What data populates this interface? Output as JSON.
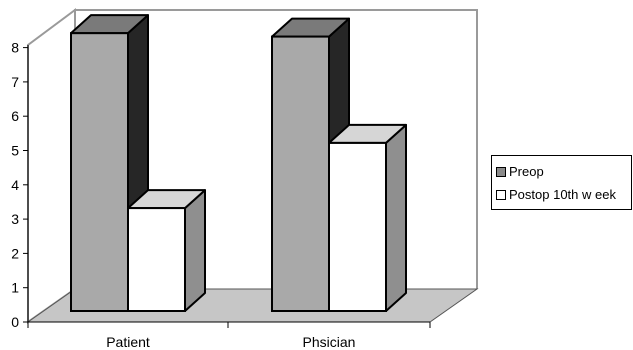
{
  "chart_data": {
    "type": "bar",
    "categories": [
      "Patient",
      "Phsician"
    ],
    "series": [
      {
        "name": "Preop",
        "values": [
          8.1,
          8.0
        ]
      },
      {
        "name": "Postop 10th w eek",
        "values": [
          3.0,
          4.9
        ]
      }
    ],
    "ylim": [
      0,
      8
    ],
    "yticks": [
      0,
      1,
      2,
      3,
      4,
      5,
      6,
      7,
      8
    ],
    "legend": "right",
    "grid": false,
    "three_d": true,
    "colors": {
      "preop_front": "#a9a9a9",
      "preop_side": "#262626",
      "preop_top": "#7a7a7a",
      "postop_front": "#ffffff",
      "postop_side": "#8f8f8f",
      "postop_top": "#d6d6d6",
      "floor": "#c6c6c6",
      "wall": "#9a9a9a"
    }
  }
}
